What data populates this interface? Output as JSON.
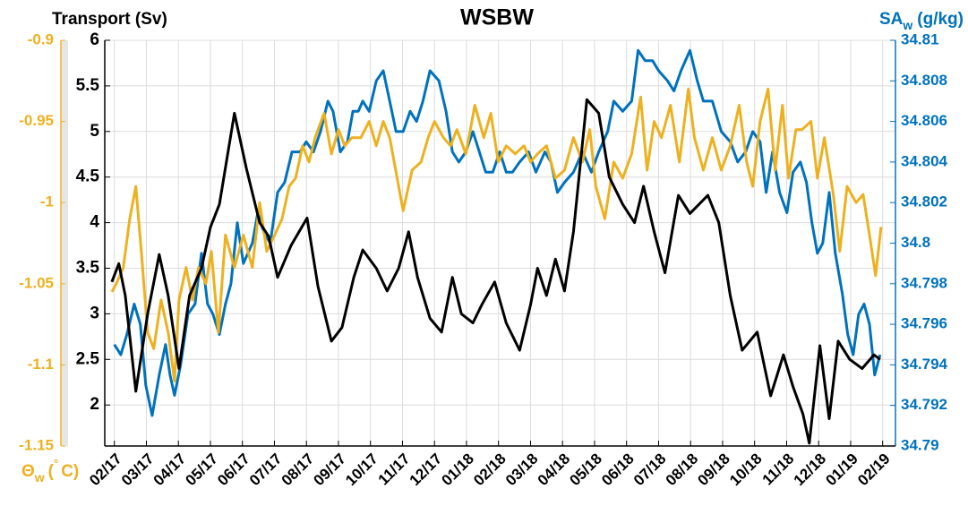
{
  "chart_data": {
    "type": "line",
    "title": "WSBW",
    "ylabel": "Transport (Sv)",
    "y2label": {
      "symbol": "SA",
      "subscript": "w",
      "unit": "(g/kg)"
    },
    "y3label": {
      "symbol": "Θ",
      "subscript": "w",
      "unit_open": "(",
      "superscript": "°",
      "unit_close": "C)"
    },
    "grid": true,
    "xlim": [
      -0.3,
      24.4
    ],
    "xticks": [
      {
        "value": 0,
        "label": "02/17"
      },
      {
        "value": 1,
        "label": "03/17"
      },
      {
        "value": 2,
        "label": "04/17"
      },
      {
        "value": 3,
        "label": "05/17"
      },
      {
        "value": 4,
        "label": "06/17"
      },
      {
        "value": 5,
        "label": "07/17"
      },
      {
        "value": 6,
        "label": "08/17"
      },
      {
        "value": 7,
        "label": "09/17"
      },
      {
        "value": 8,
        "label": "10/17"
      },
      {
        "value": 9,
        "label": "11/17"
      },
      {
        "value": 10,
        "label": "12/17"
      },
      {
        "value": 11,
        "label": "01/18"
      },
      {
        "value": 12,
        "label": "02/18"
      },
      {
        "value": 13,
        "label": "03/18"
      },
      {
        "value": 14,
        "label": "04/18"
      },
      {
        "value": 15,
        "label": "05/18"
      },
      {
        "value": 16,
        "label": "06/18"
      },
      {
        "value": 17,
        "label": "07/18"
      },
      {
        "value": 18,
        "label": "08/18"
      },
      {
        "value": 19,
        "label": "09/18"
      },
      {
        "value": 20,
        "label": "10/18"
      },
      {
        "value": 21,
        "label": "11/18"
      },
      {
        "value": 22,
        "label": "12/18"
      },
      {
        "value": 23,
        "label": "01/19"
      },
      {
        "value": 24,
        "label": "02/19"
      }
    ],
    "ylim": [
      1.55,
      6
    ],
    "yticks": [
      2,
      2.5,
      3,
      3.5,
      4,
      4.5,
      5,
      5.5,
      6
    ],
    "y2lim": [
      34.79,
      34.81
    ],
    "y2ticks": [
      34.79,
      34.792,
      34.794,
      34.796,
      34.798,
      34.8,
      34.802,
      34.804,
      34.806,
      34.808,
      34.81
    ],
    "y3lim": [
      -1.15,
      -0.9
    ],
    "y3ticks": [
      -1.15,
      -1.1,
      -1.05,
      -1,
      -0.95,
      -0.9
    ],
    "colors": {
      "y": "#000000",
      "y2": "#0072BD",
      "y3": "#EDB120"
    },
    "series": [
      {
        "name": "Transport",
        "axis": "y",
        "color": "#000000",
        "x": [
          -0.08,
          0.14,
          0.34,
          0.67,
          1.04,
          1.4,
          1.68,
          2.02,
          2.35,
          2.72,
          3.0,
          3.28,
          3.75,
          4.12,
          4.54,
          4.82,
          5.1,
          5.52,
          6.02,
          6.36,
          6.78,
          7.11,
          7.48,
          7.76,
          8.18,
          8.52,
          8.88,
          9.19,
          9.47,
          9.86,
          10.22,
          10.56,
          10.84,
          11.2,
          11.48,
          11.88,
          12.24,
          12.66,
          13.0,
          13.22,
          13.5,
          13.78,
          14.06,
          14.34,
          14.76,
          15.13,
          15.46,
          15.88,
          16.25,
          16.53,
          16.86,
          17.2,
          17.62,
          17.98,
          18.54,
          18.88,
          19.24,
          19.61,
          20.08,
          20.5,
          20.9,
          21.2,
          21.51,
          21.71,
          22.04,
          22.33,
          22.61,
          22.97,
          23.36,
          23.73,
          23.92
        ],
        "values": [
          3.35,
          3.55,
          3.2,
          2.15,
          3.0,
          3.65,
          3.2,
          2.4,
          3.2,
          3.5,
          3.95,
          4.2,
          5.2,
          4.6,
          4.0,
          3.85,
          3.4,
          3.75,
          4.05,
          3.3,
          2.7,
          2.85,
          3.4,
          3.7,
          3.5,
          3.25,
          3.5,
          3.9,
          3.4,
          2.95,
          2.8,
          3.4,
          3.0,
          2.9,
          3.1,
          3.35,
          2.9,
          2.6,
          3.1,
          3.5,
          3.2,
          3.6,
          3.25,
          3.9,
          5.35,
          5.2,
          4.5,
          4.2,
          4.0,
          4.4,
          3.9,
          3.45,
          4.3,
          4.1,
          4.3,
          4.0,
          3.2,
          2.6,
          2.8,
          2.1,
          2.55,
          2.2,
          1.9,
          1.58,
          2.65,
          1.85,
          2.7,
          2.5,
          2.4,
          2.55,
          2.5
        ]
      },
      {
        "name": "Theta",
        "axis": "y3",
        "color": "#EDB120",
        "x": [
          -0.08,
          0.06,
          0.28,
          0.48,
          0.67,
          0.84,
          1.04,
          1.23,
          1.46,
          1.68,
          1.88,
          2.02,
          2.24,
          2.44,
          2.63,
          2.86,
          3.03,
          3.25,
          3.47,
          3.75,
          4.03,
          4.31,
          4.54,
          4.76,
          5.01,
          5.24,
          5.46,
          5.66,
          5.88,
          6.08,
          6.27,
          6.55,
          6.78,
          7.0,
          7.2,
          7.42,
          7.7,
          7.96,
          8.18,
          8.4,
          8.6,
          8.88,
          9.02,
          9.3,
          9.58,
          9.8,
          10.0,
          10.28,
          10.5,
          10.7,
          10.98,
          11.26,
          11.54,
          11.76,
          11.99,
          12.24,
          12.52,
          12.8,
          13.0,
          13.22,
          13.5,
          13.78,
          14.06,
          14.34,
          14.62,
          14.85,
          15.04,
          15.32,
          15.6,
          15.88,
          16.16,
          16.44,
          16.64,
          16.86,
          17.09,
          17.37,
          17.65,
          17.93,
          18.12,
          18.4,
          18.68,
          18.96,
          19.24,
          19.52,
          19.75,
          19.94,
          20.17,
          20.42,
          20.64,
          20.87,
          21.06,
          21.29,
          21.48,
          21.76,
          21.96,
          22.18,
          22.46,
          22.66,
          22.89,
          23.17,
          23.39,
          23.59,
          23.78,
          23.95
        ],
        "values": [
          -1.055,
          -1.05,
          -1.04,
          -1.01,
          -0.99,
          -1.03,
          -1.08,
          -1.09,
          -1.06,
          -1.08,
          -1.11,
          -1.06,
          -1.04,
          -1.06,
          -1.04,
          -1.05,
          -1.03,
          -1.08,
          -1.02,
          -1.04,
          -1.02,
          -1.04,
          -1.0,
          -1.03,
          -1.02,
          -1.01,
          -0.99,
          -0.985,
          -0.965,
          -0.975,
          -0.96,
          -0.945,
          -0.97,
          -0.955,
          -0.965,
          -0.96,
          -0.96,
          -0.95,
          -0.965,
          -0.95,
          -0.96,
          -0.99,
          -1.005,
          -0.98,
          -0.975,
          -0.96,
          -0.95,
          -0.96,
          -0.965,
          -0.955,
          -0.97,
          -0.94,
          -0.96,
          -0.945,
          -0.975,
          -0.965,
          -0.97,
          -0.965,
          -0.975,
          -0.97,
          -0.965,
          -0.985,
          -0.98,
          -0.96,
          -0.975,
          -0.955,
          -0.99,
          -1.01,
          -0.975,
          -0.985,
          -0.97,
          -0.935,
          -0.98,
          -0.95,
          -0.96,
          -0.94,
          -0.975,
          -0.93,
          -0.96,
          -0.98,
          -0.96,
          -0.98,
          -0.965,
          -0.94,
          -0.975,
          -0.99,
          -0.95,
          -0.93,
          -0.98,
          -0.94,
          -0.985,
          -0.955,
          -0.955,
          -0.95,
          -0.985,
          -0.96,
          -0.995,
          -1.03,
          -0.99,
          -1.0,
          -0.995,
          -1.02,
          -1.045,
          -1.015
        ]
      },
      {
        "name": "SA",
        "axis": "y2",
        "color": "#0072BD",
        "x": [
          0,
          0.2,
          0.39,
          0.62,
          0.81,
          0.98,
          1.18,
          1.4,
          1.6,
          1.74,
          1.88,
          2.07,
          2.3,
          2.52,
          2.72,
          2.91,
          3.08,
          3.28,
          3.47,
          3.64,
          3.84,
          4.03,
          4.31,
          4.48,
          4.68,
          4.87,
          5.1,
          5.32,
          5.55,
          5.8,
          5.99,
          6.22,
          6.44,
          6.67,
          6.83,
          7.06,
          7.28,
          7.45,
          7.62,
          7.76,
          7.96,
          8.18,
          8.4,
          8.6,
          8.8,
          9.02,
          9.24,
          9.44,
          9.64,
          9.86,
          10.14,
          10.36,
          10.56,
          10.76,
          10.98,
          11.2,
          11.4,
          11.6,
          11.82,
          12.04,
          12.24,
          12.44,
          12.66,
          12.94,
          13.17,
          13.45,
          13.64,
          13.84,
          14.06,
          14.34,
          14.62,
          14.9,
          15.13,
          15.41,
          15.6,
          15.88,
          16.16,
          16.36,
          16.58,
          16.81,
          17.0,
          17.28,
          17.48,
          17.7,
          17.98,
          18.21,
          18.4,
          18.68,
          18.96,
          19.24,
          19.47,
          19.72,
          19.94,
          20.17,
          20.36,
          20.56,
          20.78,
          21.01,
          21.2,
          21.43,
          21.62,
          21.79,
          21.96,
          22.13,
          22.33,
          22.52,
          22.74,
          22.91,
          23.08,
          23.25,
          23.42,
          23.59,
          23.75,
          23.92
        ],
        "values": [
          34.795,
          34.7945,
          34.7955,
          34.797,
          34.796,
          34.793,
          34.7915,
          34.7935,
          34.795,
          34.7935,
          34.7925,
          34.794,
          34.7965,
          34.797,
          34.7995,
          34.797,
          34.7965,
          34.7955,
          34.797,
          34.798,
          34.801,
          34.799,
          34.8,
          34.8015,
          34.8005,
          34.8,
          34.8025,
          34.803,
          34.8045,
          34.8045,
          34.805,
          34.8045,
          34.8055,
          34.807,
          34.8065,
          34.8045,
          34.805,
          34.8065,
          34.8065,
          34.807,
          34.8065,
          34.808,
          34.8085,
          34.807,
          34.8055,
          34.8055,
          34.8065,
          34.806,
          34.807,
          34.8085,
          34.808,
          34.8065,
          34.8045,
          34.804,
          34.8045,
          34.8055,
          34.8045,
          34.8035,
          34.8035,
          34.8045,
          34.8035,
          34.8035,
          34.804,
          34.8045,
          34.8035,
          34.8045,
          34.804,
          34.8025,
          34.803,
          34.8035,
          34.8045,
          34.8035,
          34.8045,
          34.8055,
          34.807,
          34.8065,
          34.807,
          34.8095,
          34.809,
          34.809,
          34.8085,
          34.808,
          34.8075,
          34.8085,
          34.8095,
          34.808,
          34.807,
          34.807,
          34.8055,
          34.805,
          34.804,
          34.8045,
          34.8055,
          34.805,
          34.8025,
          34.8045,
          34.8025,
          34.8015,
          34.8035,
          34.804,
          34.803,
          34.801,
          34.7995,
          34.8,
          34.8025,
          34.7995,
          34.7975,
          34.7955,
          34.7945,
          34.7965,
          34.797,
          34.796,
          34.7935,
          34.7945
        ]
      }
    ]
  }
}
